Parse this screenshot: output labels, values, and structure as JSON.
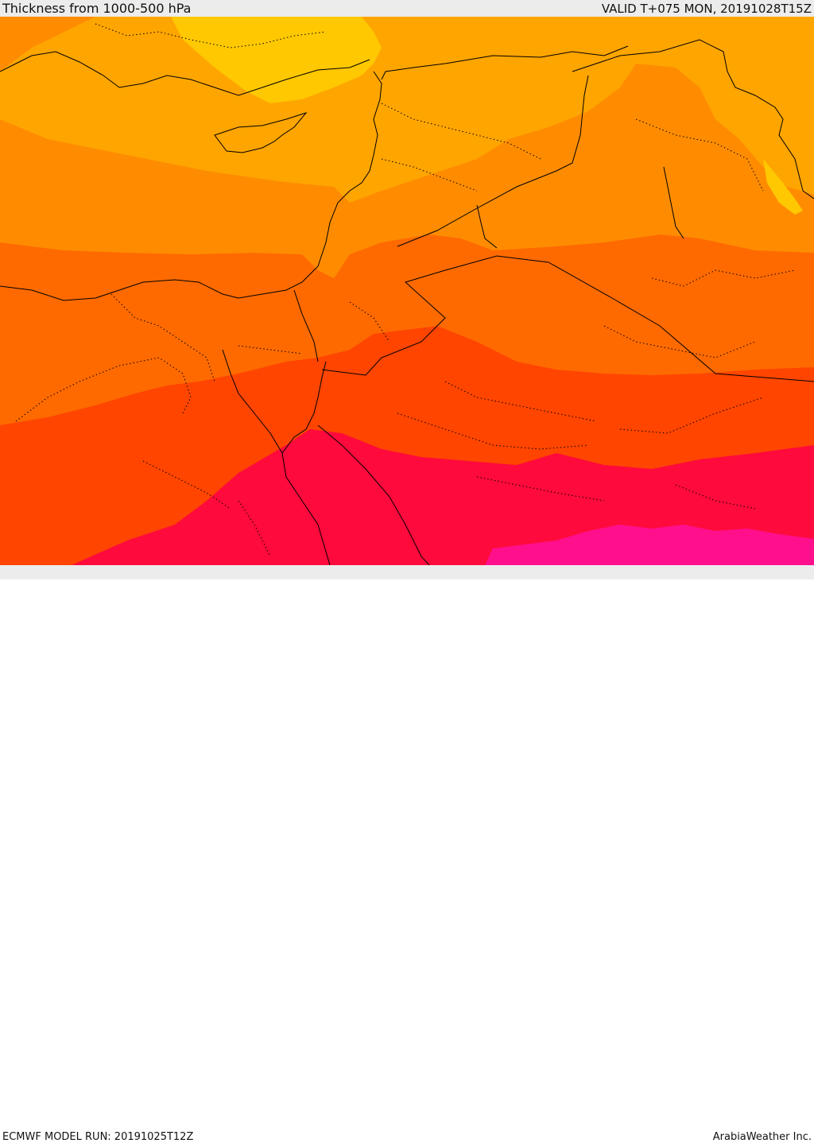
{
  "header": {
    "title": "Thickness from 1000-500 hPa",
    "valid": "VALID T+075 MON, 20191028T15Z"
  },
  "footer": {
    "model_run": "ECMWF MODEL RUN: 20191025T12Z",
    "credit": "ArabiaWeather Inc."
  },
  "colors": {
    "band_1": "#ffc800",
    "band_2": "#ffa500",
    "band_3": "#ff8c00",
    "band_4": "#ff6a00",
    "band_5": "#ff4500",
    "band_6": "#ff0a3c",
    "band_7": "#ff0f8c",
    "border_line": "#000000"
  }
}
